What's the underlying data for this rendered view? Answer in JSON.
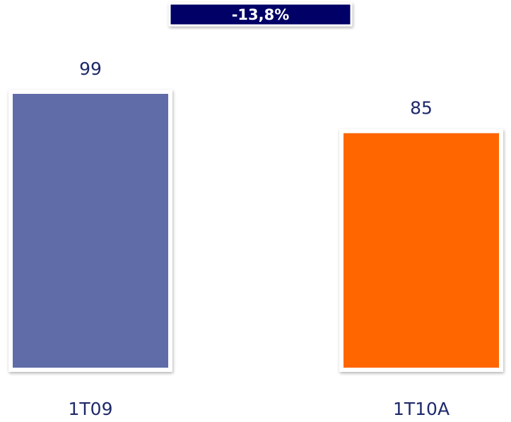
{
  "chart_data": {
    "type": "bar",
    "annotation": "-13,8%",
    "categories": [
      "1T09",
      "1T10A"
    ],
    "values": [
      99,
      85
    ],
    "colors": [
      "#5e6ca8",
      "#ff6600"
    ]
  }
}
